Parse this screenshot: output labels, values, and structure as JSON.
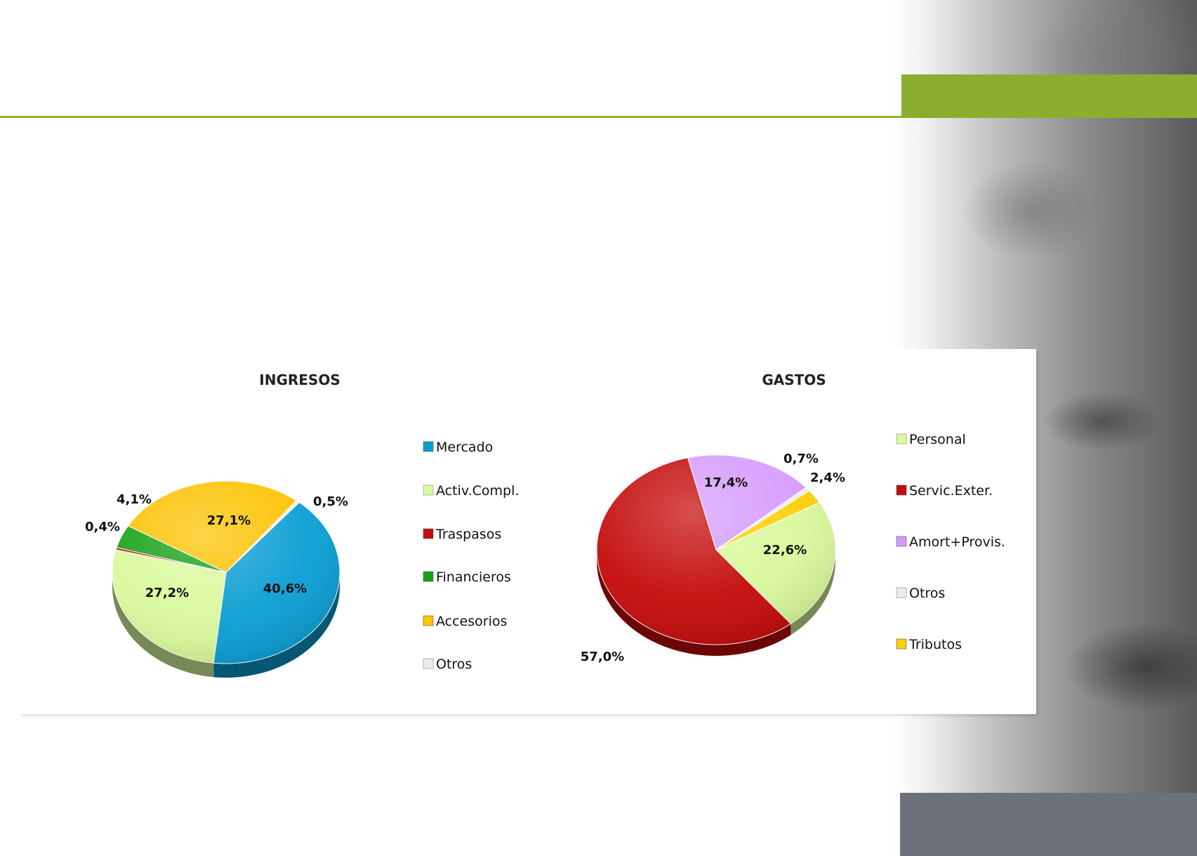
{
  "chart_data": [
    {
      "type": "pie",
      "title": "INGRESOS",
      "categories": [
        "Mercado",
        "Activ.Compl.",
        "Traspasos",
        "Financieros",
        "Accesorios",
        "Otros"
      ],
      "values": [
        40.6,
        27.2,
        0.4,
        4.1,
        27.1,
        0.5
      ],
      "labels": [
        "40,6%",
        "27,2%",
        "0,4%",
        "4,1%",
        "27,1%",
        "0,5%"
      ],
      "colors": [
        "#0a9ed3",
        "#d9f99c",
        "#c00d0d",
        "#15a015",
        "#fdc200",
        "#ececec"
      ],
      "legend": "right"
    },
    {
      "type": "pie",
      "title": "GASTOS",
      "categories": [
        "Personal",
        "Servic.Exter.",
        "Amort+Provis.",
        "Otros",
        "Tributos"
      ],
      "values": [
        22.6,
        57.0,
        17.4,
        0.7,
        2.4
      ],
      "labels": [
        "22,6%",
        "57,0%",
        "17,4%",
        "0,7%",
        "2,4%"
      ],
      "colors": [
        "#d9f99c",
        "#c40a0a",
        "#d59bfd",
        "#ececec",
        "#fdcf08"
      ],
      "legend": "right"
    }
  ]
}
